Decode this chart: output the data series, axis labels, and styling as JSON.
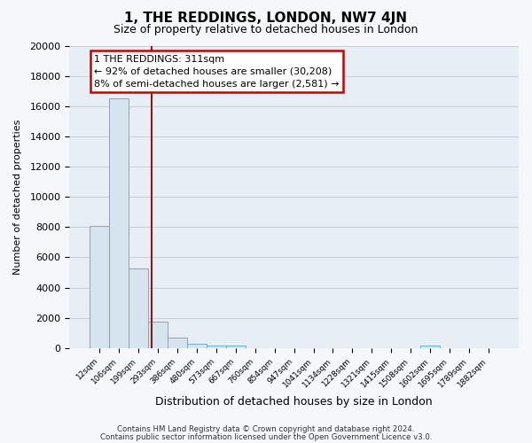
{
  "title": "1, THE REDDINGS, LONDON, NW7 4JN",
  "subtitle": "Size of property relative to detached houses in London",
  "xlabel": "Distribution of detached houses by size in London",
  "ylabel": "Number of detached properties",
  "bar_color": "#d6e4f0",
  "bar_edge_color": "#6aaed6",
  "background_color": "#e8eef5",
  "grid_color": "#c8d0da",
  "fig_bg_color": "#f5f7fa",
  "categories": [
    "12sqm",
    "106sqm",
    "199sqm",
    "293sqm",
    "386sqm",
    "480sqm",
    "573sqm",
    "667sqm",
    "760sqm",
    "854sqm",
    "947sqm",
    "1041sqm",
    "1134sqm",
    "1228sqm",
    "1321sqm",
    "1415sqm",
    "1508sqm",
    "1602sqm",
    "1695sqm",
    "1789sqm",
    "1882sqm"
  ],
  "values": [
    8050,
    16500,
    5250,
    1750,
    700,
    300,
    150,
    150,
    0,
    0,
    0,
    0,
    0,
    0,
    0,
    0,
    0,
    150,
    0,
    0,
    0
  ],
  "ylim": [
    0,
    20000
  ],
  "yticks": [
    0,
    2000,
    4000,
    6000,
    8000,
    10000,
    12000,
    14000,
    16000,
    18000,
    20000
  ],
  "vline_x": 2.7,
  "vline_color": "#8b1a1a",
  "annotation_line1": "1 THE REDDINGS: 311sqm",
  "annotation_line2": "← 92% of detached houses are smaller (30,208)",
  "annotation_line3": "8% of semi-detached houses are larger (2,581) →",
  "footer1": "Contains HM Land Registry data © Crown copyright and database right 2024.",
  "footer2": "Contains public sector information licensed under the Open Government Licence v3.0."
}
